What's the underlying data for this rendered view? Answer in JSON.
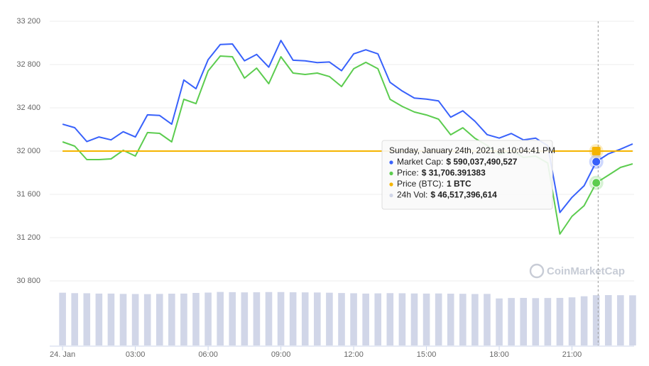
{
  "chart_data": {
    "type": "line",
    "x": [
      0,
      0.5,
      1,
      1.5,
      2,
      2.5,
      3,
      3.5,
      4,
      4.5,
      5,
      5.5,
      6,
      6.5,
      7,
      7.5,
      8,
      8.5,
      9,
      9.5,
      10,
      10.5,
      11,
      11.5,
      12,
      12.5,
      13,
      13.5,
      14,
      14.5,
      15,
      15.5,
      16,
      16.5,
      17,
      17.5,
      18,
      18.5,
      19,
      19.5,
      20,
      20.5,
      21,
      21.5,
      22,
      22.5,
      23,
      23.5
    ],
    "xlim": [
      -0.53,
      23.56
    ],
    "xticks": [
      {
        "value": 0,
        "label": "24. Jan"
      },
      {
        "value": 3,
        "label": "03:00"
      },
      {
        "value": 6,
        "label": "06:00"
      },
      {
        "value": 9,
        "label": "09:00"
      },
      {
        "value": 12,
        "label": "12:00"
      },
      {
        "value": 15,
        "label": "15:00"
      },
      {
        "value": 18,
        "label": "18:00"
      },
      {
        "value": 21,
        "label": "21:00"
      }
    ],
    "ylim": [
      30800,
      33200
    ],
    "yticks": [
      {
        "value": 30800,
        "label": "30 800"
      },
      {
        "value": 31200,
        "label": "31 200"
      },
      {
        "value": 31600,
        "label": "31 600"
      },
      {
        "value": 32000,
        "label": "32 000"
      },
      {
        "value": 32400,
        "label": "32 400"
      },
      {
        "value": 32800,
        "label": "32 800"
      },
      {
        "value": 33200,
        "label": "33 200"
      }
    ],
    "y2lim": [
      569540000000,
      614200000000
    ],
    "y3lim": [
      0,
      300000000000
    ],
    "y4lim": [
      0,
      2
    ],
    "grid": true,
    "series": [
      {
        "color": "#3861fb",
        "axis": "y2",
        "values": [
          596500000000,
          595900000000,
          593500000000,
          594300000000,
          593800000000,
          595200000000,
          594300000000,
          598100000000,
          598000000000,
          596500000000,
          604100000000,
          602600000000,
          607600000000,
          610200000000,
          610300000000,
          607400000000,
          608500000000,
          606300000000,
          610900000000,
          607500000000,
          607400000000,
          607100000000,
          607200000000,
          605700000000,
          608600000000,
          609300000000,
          608600000000,
          603700000000,
          602200000000,
          601000000000,
          600800000000,
          600500000000,
          597700000000,
          598800000000,
          597000000000,
          594700000000,
          594100000000,
          594900000000,
          593800000000,
          594100000000,
          592800000000,
          581300000000,
          583900000000,
          585900000000,
          590037490527,
          591400000000,
          592200000000,
          593100000000
        ]
      },
      {
        "color": "#5ccc4f",
        "values": [
          32085,
          32046,
          31921,
          31921,
          31928,
          32007,
          31954,
          32171,
          32164,
          32085,
          32479,
          32439,
          32741,
          32879,
          32872,
          32675,
          32767,
          32623,
          32872,
          32721,
          32708,
          32721,
          32689,
          32597,
          32761,
          32820,
          32761,
          32479,
          32413,
          32361,
          32334,
          32295,
          32151,
          32216,
          32118,
          32053,
          31967,
          32007,
          31941,
          31954,
          31889,
          31233,
          31397,
          31495,
          31706.391383,
          31777,
          31849,
          31882
        ]
      },
      {
        "color": "#f5b400",
        "axis": "y4",
        "values": [
          1,
          1,
          1,
          1,
          1,
          1,
          1,
          1,
          1,
          1,
          1,
          1,
          1,
          1,
          1,
          1,
          1,
          1,
          1,
          1,
          1,
          1,
          1,
          1,
          1,
          1,
          1,
          1,
          1,
          1,
          1,
          1,
          1,
          1,
          1,
          1,
          1,
          1,
          1,
          1,
          1,
          1,
          1,
          1,
          1,
          1,
          1,
          1
        ]
      },
      {
        "type": "column",
        "color": "#d1d6e8",
        "axis": "y3",
        "values": [
          48800000000,
          48400000000,
          48300000000,
          48000000000,
          48000000000,
          47700000000,
          47600000000,
          47500000000,
          47700000000,
          47900000000,
          48000000000,
          48600000000,
          48900000000,
          49500000000,
          49300000000,
          49100000000,
          49200000000,
          49400000000,
          49400000000,
          49200000000,
          49100000000,
          49000000000,
          48800000000,
          48500000000,
          48300000000,
          48000000000,
          48200000000,
          48400000000,
          48300000000,
          48100000000,
          48000000000,
          48100000000,
          47900000000,
          47800000000,
          47600000000,
          47700000000,
          43500000000,
          43900000000,
          44000000000,
          43800000000,
          43900000000,
          44000000000,
          44500000000,
          45500000000,
          46517396614,
          46600000000,
          46500000000,
          46400000000
        ]
      }
    ],
    "tooltip": {
      "x": 22.078,
      "title": "Sunday, January 24th, 2021 at 10:04:41 PM",
      "rows": [
        {
          "label": "Market Cap:",
          "value": 590037490527,
          "value_label": "$ 590,037,490,527"
        },
        {
          "label": "Price:",
          "value": 31706.391383,
          "value_label": "$ 31,706.391383"
        },
        {
          "label": "Price (BTC):",
          "value": 1,
          "value_label": "1 BTC"
        },
        {
          "label": "24h Vol:",
          "value": 46517396614,
          "value_label": "$ 46,517,396,614"
        }
      ]
    },
    "watermark": "CoinMarketCap"
  }
}
